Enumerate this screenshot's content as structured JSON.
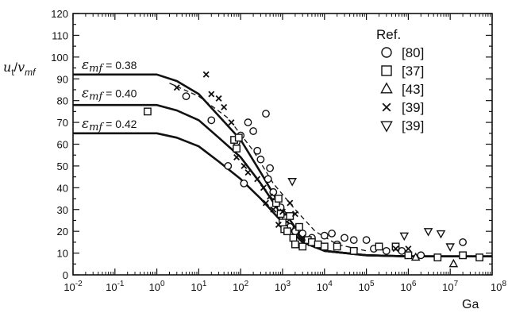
{
  "chart_data": {
    "type": "scatter",
    "title": "",
    "xlabel": "Ga",
    "ylabel_parts": {
      "u": "u",
      "t": "t",
      "slash": "/",
      "v": "v",
      "mf": "mf"
    },
    "x_scale": "log",
    "xlim": [
      0.01,
      100000000
    ],
    "ylim": [
      0,
      120
    ],
    "x_tick_labels": [
      {
        "value": 0.01,
        "base": "10",
        "exp": "-2"
      },
      {
        "value": 0.1,
        "base": "10",
        "exp": "-1"
      },
      {
        "value": 1,
        "base": "10",
        "exp": "0"
      },
      {
        "value": 10,
        "base": "10",
        "exp": "1"
      },
      {
        "value": 100,
        "base": "10",
        "exp": "2"
      },
      {
        "value": 1000,
        "base": "10",
        "exp": "3"
      },
      {
        "value": 10000,
        "base": "10",
        "exp": "4"
      },
      {
        "value": 100000,
        "base": "10",
        "exp": "5"
      },
      {
        "value": 1000000,
        "base": "10",
        "exp": "6"
      },
      {
        "value": 10000000,
        "base": "10",
        "exp": "7"
      },
      {
        "value": 100000000,
        "base": "10",
        "exp": "8"
      }
    ],
    "y_ticks": [
      0,
      10,
      20,
      30,
      40,
      50,
      60,
      70,
      80,
      90,
      100,
      110,
      120
    ],
    "grid": false,
    "legend": {
      "title": "Ref.",
      "placement": "top-right",
      "entries": [
        {
          "marker": "circle",
          "label": "[80]"
        },
        {
          "marker": "square",
          "label": "[37]"
        },
        {
          "marker": "triangle-up",
          "label": "[43]"
        },
        {
          "marker": "x",
          "label": "[39]"
        },
        {
          "marker": "triangle-down",
          "label": "[39]"
        }
      ]
    },
    "curves": [
      {
        "sym": "ε",
        "sub": "mf",
        "value": "= 0.38",
        "label_x": 1,
        "label_y": 93,
        "points": [
          [
            0.01,
            92
          ],
          [
            1,
            92
          ],
          [
            3,
            89
          ],
          [
            10,
            83
          ],
          [
            30,
            73
          ],
          [
            100,
            62
          ],
          [
            300,
            47
          ],
          [
            1000,
            30
          ],
          [
            3000,
            17
          ],
          [
            10000,
            11
          ],
          [
            100000,
            9
          ],
          [
            1000000,
            8.5
          ],
          [
            100000000,
            8.5
          ]
        ]
      },
      {
        "sym": "ε",
        "sub": "mf",
        "value": "= 0.40",
        "label_x": 1,
        "label_y": 80,
        "points": [
          [
            0.01,
            78
          ],
          [
            1,
            78
          ],
          [
            3,
            75.5
          ],
          [
            10,
            71
          ],
          [
            30,
            63
          ],
          [
            100,
            54
          ],
          [
            300,
            42
          ],
          [
            1000,
            27
          ],
          [
            3000,
            16
          ],
          [
            10000,
            11
          ],
          [
            100000,
            9
          ],
          [
            1000000,
            8.5
          ],
          [
            100000000,
            8.5
          ]
        ]
      },
      {
        "sym": "ε",
        "sub": "mf",
        "value": "= 0.42",
        "label_x": 1,
        "label_y": 66,
        "points": [
          [
            0.01,
            65
          ],
          [
            1,
            65
          ],
          [
            3,
            63
          ],
          [
            10,
            59
          ],
          [
            30,
            52
          ],
          [
            100,
            44
          ],
          [
            300,
            35
          ],
          [
            1000,
            24
          ],
          [
            3000,
            15
          ],
          [
            10000,
            11
          ],
          [
            100000,
            9
          ],
          [
            1000000,
            8.5
          ],
          [
            100000000,
            8.5
          ]
        ]
      }
    ],
    "dashed_curve": {
      "points": [
        [
          2,
          88
        ],
        [
          10,
          82
        ],
        [
          50,
          72
        ],
        [
          200,
          57
        ],
        [
          600,
          42
        ],
        [
          2000,
          30
        ],
        [
          6000,
          20
        ],
        [
          20000,
          14
        ],
        [
          100000,
          11
        ]
      ]
    },
    "series": [
      {
        "marker": "circle",
        "points": [
          [
            5,
            82
          ],
          [
            20,
            71
          ],
          [
            50,
            50
          ],
          [
            80,
            61
          ],
          [
            100,
            64
          ],
          [
            120,
            42
          ],
          [
            150,
            70
          ],
          [
            200,
            66
          ],
          [
            250,
            57
          ],
          [
            300,
            53
          ],
          [
            400,
            74
          ],
          [
            450,
            44
          ],
          [
            500,
            49
          ],
          [
            600,
            38
          ],
          [
            700,
            34
          ],
          [
            900,
            31
          ],
          [
            1000,
            28
          ],
          [
            1200,
            26
          ],
          [
            1500,
            22
          ],
          [
            2000,
            20
          ],
          [
            3000,
            19
          ],
          [
            5000,
            17
          ],
          [
            10000,
            18
          ],
          [
            15000,
            19
          ],
          [
            20000,
            14
          ],
          [
            30000,
            17
          ],
          [
            50000,
            16
          ],
          [
            100000,
            16
          ],
          [
            150000,
            12
          ],
          [
            300000,
            11
          ],
          [
            700000,
            11
          ],
          [
            2000000,
            9
          ],
          [
            20000000,
            15
          ]
        ]
      },
      {
        "marker": "square",
        "points": [
          [
            0.6,
            75
          ],
          [
            70,
            62
          ],
          [
            80,
            58
          ],
          [
            90,
            63
          ],
          [
            700,
            33
          ],
          [
            800,
            35
          ],
          [
            900,
            28
          ],
          [
            1000,
            24
          ],
          [
            1100,
            21
          ],
          [
            1300,
            20
          ],
          [
            1500,
            27
          ],
          [
            1800,
            17
          ],
          [
            2000,
            14
          ],
          [
            2500,
            22
          ],
          [
            3000,
            13
          ],
          [
            4000,
            16
          ],
          [
            5000,
            15
          ],
          [
            7000,
            14
          ],
          [
            10000,
            13
          ],
          [
            20000,
            13
          ],
          [
            50000,
            11
          ],
          [
            200000,
            13
          ],
          [
            500000,
            13
          ],
          [
            1000000,
            9
          ],
          [
            5000000,
            8
          ],
          [
            20000000,
            9
          ],
          [
            50000000,
            8
          ]
        ]
      },
      {
        "marker": "triangle-up",
        "points": [
          [
            1500000,
            8
          ],
          [
            12000000,
            5
          ]
        ]
      },
      {
        "marker": "x",
        "points": [
          [
            3,
            86
          ],
          [
            15,
            92
          ],
          [
            20,
            83
          ],
          [
            30,
            81
          ],
          [
            40,
            77
          ],
          [
            60,
            70
          ],
          [
            80,
            54
          ],
          [
            120,
            50
          ],
          [
            150,
            47
          ],
          [
            250,
            44
          ],
          [
            350,
            40
          ],
          [
            400,
            33
          ],
          [
            500,
            36
          ],
          [
            600,
            30
          ],
          [
            800,
            23
          ],
          [
            1000,
            29
          ],
          [
            1500,
            33
          ],
          [
            2000,
            28
          ],
          [
            3000,
            17
          ],
          [
            500000,
            12
          ],
          [
            1000000,
            12
          ]
        ]
      },
      {
        "marker": "triangle-down",
        "points": [
          [
            1700,
            43
          ],
          [
            800000,
            18
          ],
          [
            3000000,
            20
          ],
          [
            6000000,
            19
          ],
          [
            10000000,
            13
          ]
        ]
      }
    ]
  }
}
